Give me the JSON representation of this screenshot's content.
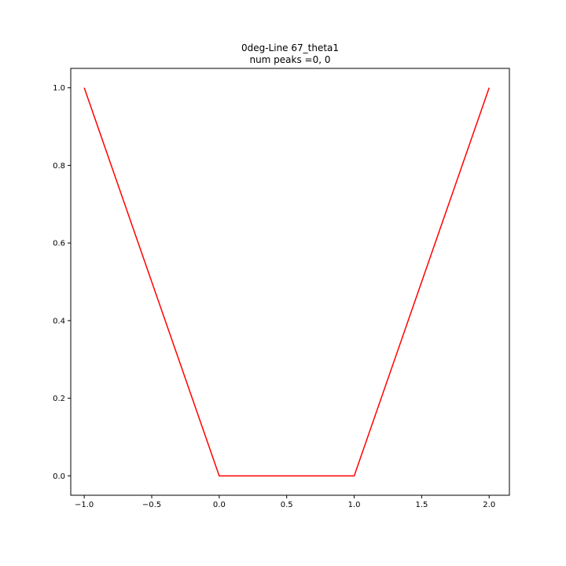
{
  "chart_data": {
    "type": "line",
    "title": "0deg-Line 67_theta1",
    "subtitle": "num peaks =0, 0",
    "xlabel": "",
    "ylabel": "",
    "xlim": [
      -1.1,
      2.15
    ],
    "ylim": [
      -0.05,
      1.05
    ],
    "x_ticks": [
      -1.0,
      -0.5,
      0.0,
      0.5,
      1.0,
      1.5,
      2.0
    ],
    "x_tick_labels": [
      "−1.0",
      "−0.5",
      "0.0",
      "0.5",
      "1.0",
      "1.5",
      "2.0"
    ],
    "y_ticks": [
      0.0,
      0.2,
      0.4,
      0.6,
      0.8,
      1.0
    ],
    "y_tick_labels": [
      "0.0",
      "0.2",
      "0.4",
      "0.6",
      "0.8",
      "1.0"
    ],
    "grid": false,
    "legend": "none",
    "series": [
      {
        "color": "#ff0000",
        "x": [
          -1.0,
          0.0,
          1.0,
          2.0
        ],
        "y": [
          1.0,
          0.0,
          0.0,
          1.0
        ]
      }
    ]
  }
}
